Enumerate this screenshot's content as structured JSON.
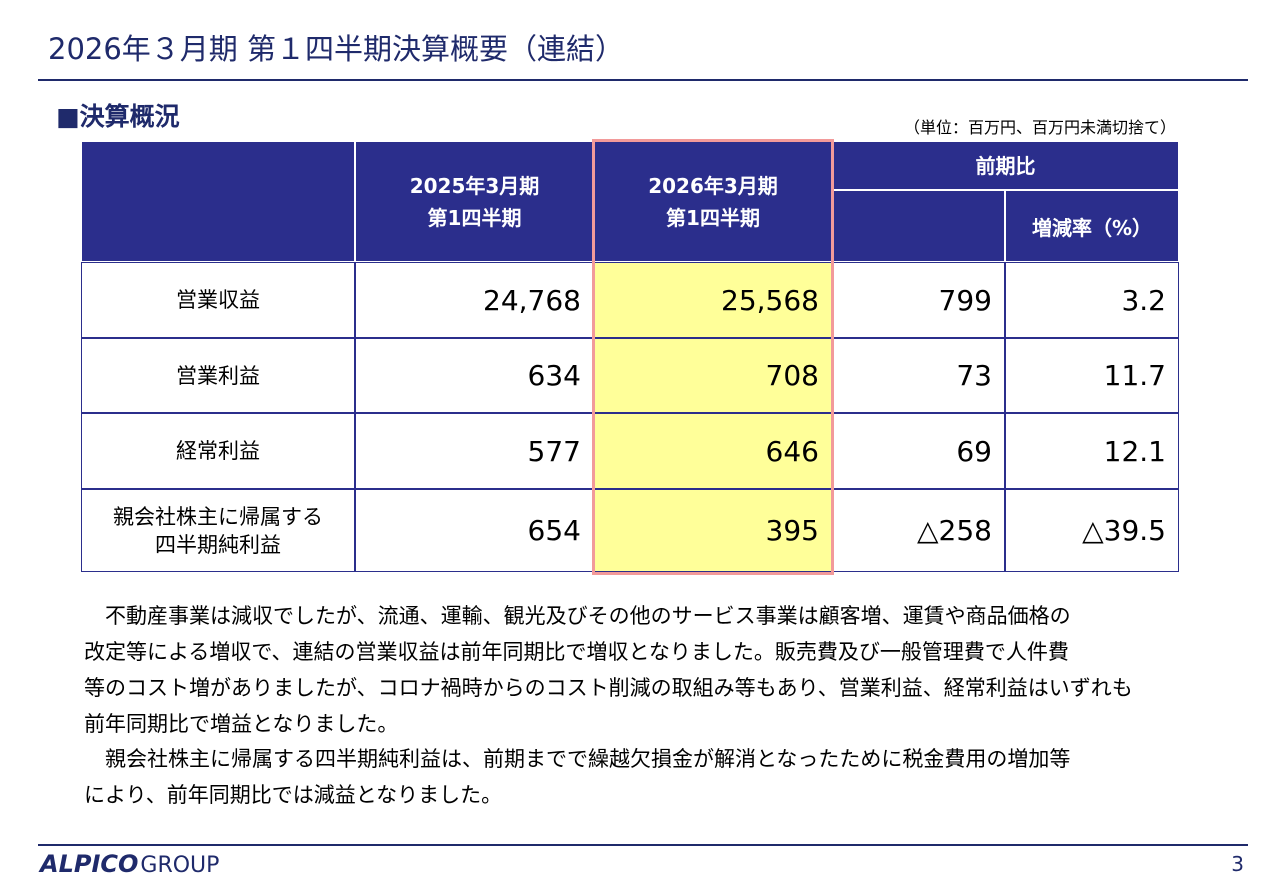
{
  "header": {
    "title": "2026年３月期 第１四半期決算概要（連結）"
  },
  "section": {
    "heading": "■決算概況",
    "unit_note": "（単位：百万円、百万円未満切捨て）"
  },
  "table": {
    "columns": [
      [
        "2025年3月期",
        "第1四半期"
      ],
      [
        "2026年3月期",
        "第1四半期"
      ]
    ],
    "group_header": "前期比",
    "sub_header": "増減率（%）",
    "rows": [
      {
        "label": [
          "営業収益"
        ],
        "values": [
          "24,768",
          "25,568",
          "799",
          "3.2"
        ]
      },
      {
        "label": [
          "営業利益"
        ],
        "values": [
          "634",
          "708",
          "73",
          "11.7"
        ]
      },
      {
        "label": [
          "経常利益"
        ],
        "values": [
          "577",
          "646",
          "69",
          "12.1"
        ]
      },
      {
        "label": [
          "親会社株主に帰属する",
          "四半期純利益"
        ],
        "values": [
          "654",
          "395",
          "△258",
          "△39.5"
        ]
      }
    ]
  },
  "body": {
    "paragraphs": [
      [
        "不動産事業は減収でしたが、流通、運輸、観光及びその他のサービス事業は顧客増、運賃や商品価格の",
        "改定等による増収で、連結の営業収益は前年同期比で増収となりました。販売費及び一般管理費で人件費",
        "等のコスト増がありましたが、コロナ禍時からのコスト削減の取組み等もあり、営業利益、経常利益はいずれも",
        "前年同期比で増益となりました。"
      ],
      [
        "親会社株主に帰属する四半期純利益は、前期までで繰越欠損金が解消となったために税金費用の増加等",
        "により、前年同期比では減益となりました。"
      ]
    ]
  },
  "footer": {
    "brand": "ALPICO",
    "group": "GROUP",
    "page": "3"
  }
}
